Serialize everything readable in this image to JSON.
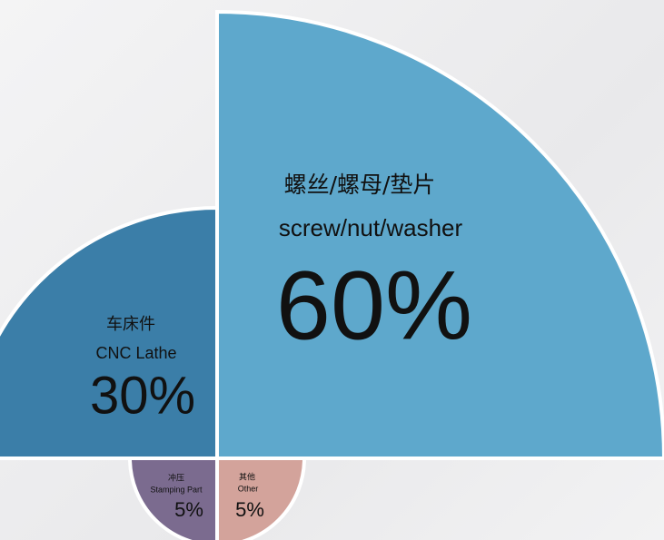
{
  "chart_data": {
    "type": "quadrant",
    "labels_cn": [
      "螺丝/螺母/垫片",
      "车床件",
      "冲压",
      "其他"
    ],
    "categories": [
      "screw/nut/washer",
      "CNC Lathe",
      "Stamping Part",
      "Other"
    ],
    "values": [
      60,
      30,
      5,
      5
    ],
    "value_labels": [
      "60%",
      "30%",
      "5%",
      "5%"
    ],
    "colors": [
      "#5ea8cc",
      "#3b7ea8",
      "#7b6b8f",
      "#d3a39b"
    ]
  }
}
